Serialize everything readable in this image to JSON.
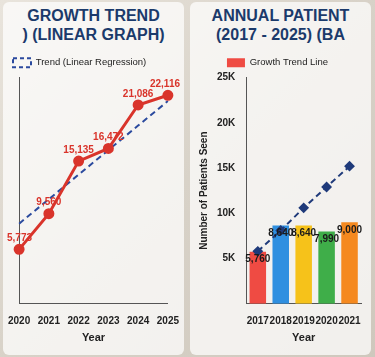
{
  "chart_data": [
    {
      "type": "line",
      "title": [
        "GROWTH TREND",
        ") (LINEAR GRAPH)"
      ],
      "x_label": "Year",
      "categories": [
        "2020",
        "2021",
        "2022",
        "2023",
        "2024",
        "2025"
      ],
      "ylim": [
        0,
        24000
      ],
      "yticks": [],
      "tick_labels": "x",
      "grid": false,
      "legend": "top-left",
      "series": [
        {
          "color": "#d9342b",
          "values": [
            5773,
            9560,
            15135,
            16472,
            21086,
            22116
          ],
          "marker": "circle",
          "line_style": "solid",
          "data_labels": true,
          "value_labels": [
            "5,773",
            "9,560",
            "15,135",
            "16,472",
            "21,086",
            "22,116"
          ]
        },
        {
          "name": "Trend (Linear Regression)",
          "color": "#2b4a9e",
          "values": [
            8500,
            11100,
            13700,
            16300,
            18900,
            21500
          ],
          "marker": "none",
          "line_style": "dashed"
        }
      ]
    },
    {
      "type": "bar",
      "title": [
        "ANNUAL PATIENT",
        "(2017 - 2025) (BA"
      ],
      "x_label": "Year",
      "y_label": "Number of Patients Seen",
      "categories": [
        "2017",
        "2018",
        "2019",
        "2020",
        "2021"
      ],
      "ylim": [
        0,
        25000
      ],
      "yticks": [
        {
          "value": 5000,
          "label": "5K"
        },
        {
          "value": 10000,
          "label": "10K"
        },
        {
          "value": 15000,
          "label": "15K"
        },
        {
          "value": 20000,
          "label": "20K"
        },
        {
          "value": 25000,
          "label": "25K"
        }
      ],
      "grid": false,
      "legend": "top",
      "series": [
        {
          "name": "Growth Trend Line",
          "type": "bar",
          "color": "#ef4b43",
          "colors": [
            "#ef4b43",
            "#2f8fe0",
            "#f6c21a",
            "#3fae49",
            "#f5891f"
          ],
          "values": [
            5760,
            8640,
            8640,
            7990,
            9000
          ],
          "data_labels": true,
          "value_labels": [
            "5,760",
            "8,640",
            "8,640",
            "7,990",
            "9,000"
          ]
        },
        {
          "type": "line",
          "color": "#1f3a7a",
          "values": [
            5800,
            8100,
            10600,
            12900,
            15200
          ],
          "marker": "diamond",
          "line_style": "dashed"
        }
      ]
    }
  ]
}
